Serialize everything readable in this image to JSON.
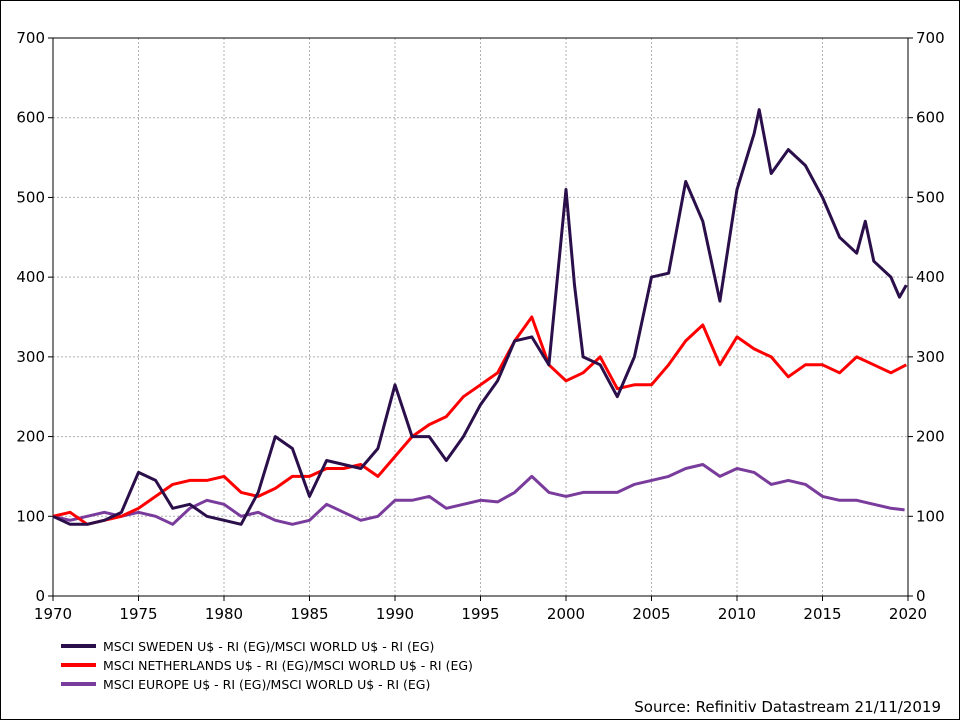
{
  "chart_data": {
    "type": "line",
    "title": "",
    "xlabel": "",
    "ylabel": "",
    "xlim": [
      1970,
      2020
    ],
    "ylim": [
      0,
      700
    ],
    "x_ticks": [
      1970,
      1975,
      1980,
      1985,
      1990,
      1995,
      2000,
      2005,
      2010,
      2015,
      2020
    ],
    "y_ticks": [
      0,
      100,
      200,
      300,
      400,
      500,
      600,
      700
    ],
    "grid": true,
    "secondary_y_axis": "mirrored",
    "legend_placement": "bottom-left",
    "series": [
      {
        "name": "MSCI SWEDEN U$ - RI (EG)/MSCI WORLD U$ - RI (EG)",
        "color": "#2a0f4a",
        "x": [
          1970,
          1971,
          1972,
          1973,
          1974,
          1975,
          1976,
          1977,
          1978,
          1979,
          1980,
          1981,
          1982,
          1983,
          1984,
          1985,
          1986,
          1987,
          1988,
          1989,
          1990,
          1991,
          1992,
          1993,
          1994,
          1995,
          1996,
          1997,
          1998,
          1999,
          2000,
          2000.5,
          2001,
          2002,
          2003,
          2004,
          2005,
          2006,
          2007,
          2008,
          2009,
          2010,
          2011,
          2011.3,
          2012,
          2013,
          2014,
          2015,
          2016,
          2017,
          2017.5,
          2018,
          2019,
          2019.5,
          2019.9
        ],
        "values": [
          100,
          90,
          90,
          95,
          105,
          155,
          145,
          110,
          115,
          100,
          95,
          90,
          130,
          200,
          185,
          125,
          170,
          165,
          160,
          185,
          265,
          200,
          200,
          170,
          200,
          240,
          270,
          320,
          325,
          290,
          510,
          390,
          300,
          290,
          250,
          300,
          400,
          405,
          520,
          470,
          370,
          510,
          580,
          610,
          530,
          560,
          540,
          500,
          450,
          430,
          470,
          420,
          400,
          375,
          390
        ]
      },
      {
        "name": "MSCI NETHERLANDS U$ - RI (EG)/MSCI WORLD U$ - RI (EG)",
        "color": "#ff0000",
        "x": [
          1970,
          1971,
          1972,
          1973,
          1974,
          1975,
          1976,
          1977,
          1978,
          1979,
          1980,
          1981,
          1982,
          1983,
          1984,
          1985,
          1986,
          1987,
          1988,
          1989,
          1990,
          1991,
          1992,
          1993,
          1994,
          1995,
          1996,
          1997,
          1998,
          1999,
          2000,
          2001,
          2002,
          2003,
          2004,
          2005,
          2006,
          2007,
          2008,
          2009,
          2010,
          2011,
          2012,
          2013,
          2014,
          2015,
          2016,
          2017,
          2018,
          2019,
          2019.9
        ],
        "values": [
          100,
          105,
          90,
          95,
          100,
          110,
          125,
          140,
          145,
          145,
          150,
          130,
          125,
          135,
          150,
          150,
          160,
          160,
          165,
          150,
          175,
          200,
          215,
          225,
          250,
          265,
          280,
          320,
          350,
          290,
          270,
          280,
          300,
          260,
          265,
          265,
          290,
          320,
          340,
          290,
          325,
          310,
          300,
          275,
          290,
          290,
          280,
          300,
          290,
          280,
          290
        ]
      },
      {
        "name": "MSCI EUROPE U$ - RI (EG)/MSCI WORLD U$ - RI (EG)",
        "color": "#7a3c9c",
        "x": [
          1970,
          1971,
          1972,
          1973,
          1974,
          1975,
          1976,
          1977,
          1978,
          1979,
          1980,
          1981,
          1982,
          1983,
          1984,
          1985,
          1986,
          1987,
          1988,
          1989,
          1990,
          1991,
          1992,
          1993,
          1994,
          1995,
          1996,
          1997,
          1998,
          1999,
          2000,
          2001,
          2002,
          2003,
          2004,
          2005,
          2006,
          2007,
          2008,
          2009,
          2010,
          2011,
          2012,
          2013,
          2014,
          2015,
          2016,
          2017,
          2018,
          2019,
          2019.8
        ],
        "values": [
          100,
          95,
          100,
          105,
          100,
          105,
          100,
          90,
          110,
          120,
          115,
          100,
          105,
          95,
          90,
          95,
          115,
          105,
          95,
          100,
          120,
          120,
          125,
          110,
          115,
          120,
          118,
          130,
          150,
          130,
          125,
          130,
          130,
          130,
          140,
          145,
          150,
          160,
          165,
          150,
          160,
          155,
          140,
          145,
          140,
          125,
          120,
          120,
          115,
          110,
          108
        ]
      }
    ]
  },
  "source": "Source: Refinitiv Datastream 21/11/2019"
}
